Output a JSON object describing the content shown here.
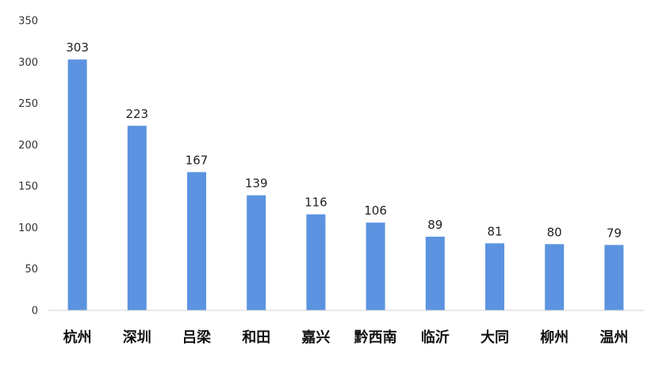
{
  "chart_data": {
    "type": "bar",
    "title": "",
    "xlabel": "",
    "ylabel": "",
    "categories": [
      "杭州",
      "深圳",
      "吕梁",
      "和田",
      "嘉兴",
      "黔西南",
      "临沂",
      "大同",
      "柳州",
      "温州"
    ],
    "values": [
      303,
      223,
      167,
      139,
      116,
      106,
      89,
      81,
      80,
      79
    ],
    "data_labels": [
      "303",
      "223",
      "167",
      "139",
      "116",
      "106",
      "89",
      "81",
      "80",
      "79"
    ],
    "ylim": [
      0,
      350
    ],
    "y_ticks": [
      0,
      50,
      100,
      150,
      200,
      250,
      300,
      350
    ],
    "y_tick_labels": [
      "0",
      "50",
      "100",
      "150",
      "200",
      "250",
      "300",
      "350"
    ],
    "grid": false,
    "legend": "none",
    "colors": {
      "bar": "#5b93e0",
      "axis": "#d0d0d0"
    }
  }
}
